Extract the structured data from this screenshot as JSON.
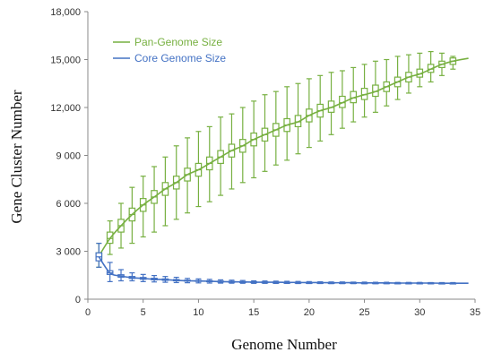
{
  "chart_data": {
    "type": "line",
    "xlabel": "Genome Number",
    "ylabel": "Gene Cluster Number",
    "xlim": [
      0,
      35
    ],
    "ylim": [
      0,
      18000
    ],
    "x_ticks": [
      0,
      5,
      10,
      15,
      20,
      25,
      30,
      35
    ],
    "x_tick_labels": [
      "0",
      "5",
      "10",
      "15",
      "20",
      "25",
      "30",
      "35"
    ],
    "y_ticks": [
      0,
      3000,
      6000,
      9000,
      12000,
      15000,
      18000
    ],
    "y_tick_labels": [
      "0",
      "3 000",
      "6 000",
      "9 000",
      "12,000",
      "15,000",
      "18,000"
    ],
    "grid": false,
    "legend_position": "top-left",
    "colors": {
      "pan": "#77b041",
      "core": "#4472c4"
    },
    "series": [
      {
        "name": "Pan-Genome Size",
        "fit_curve": true,
        "x": [
          1,
          2,
          3,
          4,
          5,
          6,
          7,
          8,
          9,
          10,
          11,
          12,
          13,
          14,
          15,
          16,
          17,
          18,
          19,
          20,
          21,
          22,
          23,
          24,
          25,
          26,
          27,
          28,
          29,
          30,
          31,
          32,
          33
        ],
        "median": [
          2700,
          3800,
          4600,
          5300,
          5900,
          6400,
          6900,
          7300,
          7800,
          8100,
          8500,
          8900,
          9300,
          9600,
          10000,
          10300,
          10600,
          10900,
          11100,
          11500,
          11800,
          12000,
          12300,
          12600,
          12800,
          13000,
          13300,
          13600,
          13900,
          14100,
          14400,
          14700,
          14900
        ],
        "q1": [
          2500,
          3500,
          4200,
          4900,
          5500,
          6000,
          6500,
          6900,
          7400,
          7700,
          8100,
          8500,
          8900,
          9200,
          9600,
          9900,
          10200,
          10500,
          10800,
          11100,
          11400,
          11700,
          12000,
          12300,
          12500,
          12700,
          13000,
          13300,
          13600,
          13900,
          14200,
          14500,
          14700
        ],
        "q3": [
          2900,
          4200,
          5000,
          5700,
          6300,
          6800,
          7300,
          7700,
          8200,
          8500,
          8900,
          9300,
          9700,
          10000,
          10400,
          10700,
          11000,
          11300,
          11500,
          11900,
          12200,
          12400,
          12700,
          13000,
          13200,
          13400,
          13600,
          13900,
          14200,
          14400,
          14700,
          14900,
          15100
        ],
        "min": [
          2000,
          2800,
          3200,
          3500,
          3900,
          4200,
          4600,
          5000,
          5400,
          5800,
          6100,
          6500,
          6900,
          7300,
          7600,
          8000,
          8400,
          8700,
          9100,
          9500,
          9900,
          10300,
          10700,
          11100,
          11400,
          11700,
          12100,
          12500,
          12900,
          13300,
          13600,
          14000,
          14400
        ],
        "max": [
          3500,
          4900,
          6000,
          7000,
          7700,
          8300,
          8900,
          9600,
          10100,
          10500,
          10800,
          11400,
          11600,
          12000,
          12400,
          12800,
          13000,
          13300,
          13500,
          13800,
          14000,
          14200,
          14300,
          14500,
          14700,
          14900,
          15000,
          15200,
          15300,
          15400,
          15500,
          15400,
          15200
        ]
      },
      {
        "name": "Core Genome Size",
        "fit_curve": true,
        "x": [
          1,
          2,
          3,
          4,
          5,
          6,
          7,
          8,
          9,
          10,
          11,
          12,
          13,
          14,
          15,
          16,
          17,
          18,
          19,
          20,
          21,
          22,
          23,
          24,
          25,
          26,
          27,
          28,
          29,
          30,
          31,
          32,
          33
        ],
        "median": [
          2650,
          1650,
          1450,
          1350,
          1300,
          1250,
          1220,
          1180,
          1150,
          1140,
          1120,
          1100,
          1090,
          1080,
          1070,
          1060,
          1060,
          1050,
          1050,
          1040,
          1040,
          1030,
          1030,
          1030,
          1020,
          1020,
          1020,
          1010,
          1010,
          1010,
          1010,
          1000,
          1000
        ],
        "q1": [
          2400,
          1550,
          1380,
          1300,
          1250,
          1210,
          1180,
          1150,
          1130,
          1120,
          1100,
          1090,
          1080,
          1070,
          1060,
          1050,
          1050,
          1040,
          1040,
          1030,
          1030,
          1020,
          1020,
          1020,
          1010,
          1010,
          1010,
          1000,
          1000,
          1000,
          1000,
          990,
          990
        ],
        "q3": [
          2900,
          1780,
          1530,
          1420,
          1360,
          1310,
          1270,
          1230,
          1190,
          1170,
          1150,
          1130,
          1110,
          1100,
          1090,
          1080,
          1070,
          1060,
          1060,
          1050,
          1050,
          1040,
          1040,
          1040,
          1030,
          1030,
          1030,
          1020,
          1020,
          1020,
          1020,
          1010,
          1010
        ],
        "min": [
          2000,
          1100,
          1150,
          1150,
          1100,
          1080,
          1060,
          1040,
          1030,
          1020,
          1010,
          1005,
          1000,
          995,
          990,
          990,
          985,
          985,
          980,
          980,
          980,
          975,
          975,
          975,
          970,
          970,
          970,
          970,
          965,
          965,
          965,
          965,
          960
        ],
        "max": [
          3500,
          2300,
          1850,
          1650,
          1550,
          1480,
          1420,
          1370,
          1300,
          1270,
          1240,
          1210,
          1190,
          1170,
          1150,
          1140,
          1130,
          1120,
          1110,
          1100,
          1090,
          1080,
          1080,
          1070,
          1070,
          1060,
          1060,
          1050,
          1050,
          1050,
          1040,
          1040,
          1040
        ]
      }
    ]
  }
}
